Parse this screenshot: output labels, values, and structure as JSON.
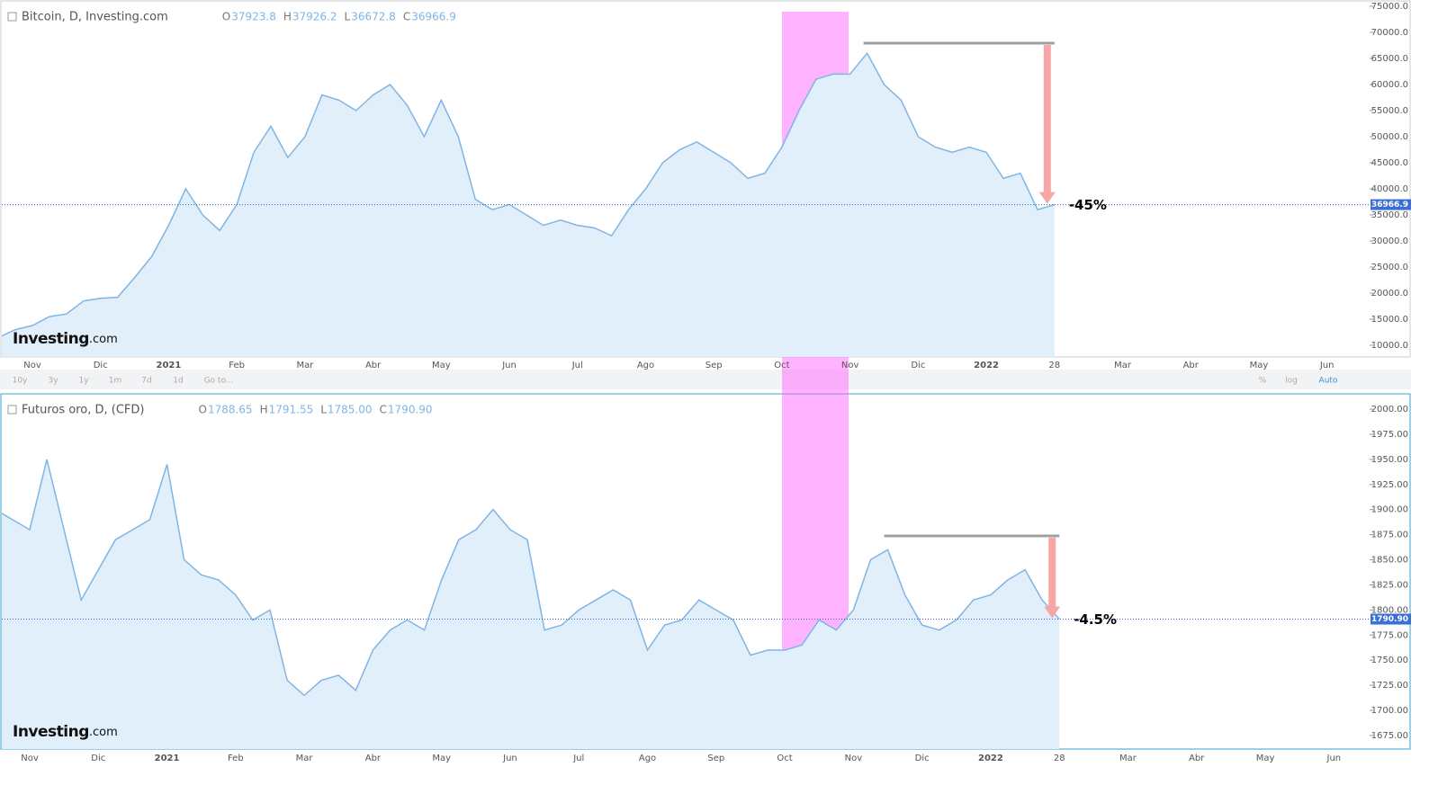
{
  "chart_data": [
    {
      "type": "area",
      "title": "Bitcoin, D, Investing.com",
      "ohlc": [
        {
          "name": "O",
          "value": 37923.8
        },
        {
          "name": "H",
          "value": 37926.2
        },
        {
          "name": "L",
          "value": 36672.8
        },
        {
          "name": "C",
          "value": 36966.9
        }
      ],
      "logo": [
        "Investing",
        ".com"
      ],
      "annotation": "-45%",
      "color": "#7fb5e6",
      "categories": [
        null,
        null,
        "Nov",
        null,
        null,
        null,
        "Dic",
        null,
        null,
        null,
        "2021",
        null,
        null,
        null,
        "Feb",
        null,
        null,
        null,
        "Mar",
        null,
        null,
        null,
        "Abr",
        null,
        null,
        null,
        "May",
        null,
        null,
        null,
        "Jun",
        null,
        null,
        null,
        "Jul",
        null,
        null,
        null,
        "Ago",
        null,
        null,
        null,
        "Sep",
        null,
        null,
        null,
        "Oct",
        null,
        null,
        null,
        "Nov",
        null,
        null,
        null,
        "Dic",
        null,
        null,
        null,
        "2022",
        null,
        null,
        null,
        "28",
        null,
        null,
        null,
        "Mar",
        null,
        null,
        null,
        "Abr",
        null,
        null,
        null,
        "May",
        null,
        null,
        null,
        "Jun",
        null
      ],
      "values": [
        11500,
        13000,
        13800,
        15500,
        16000,
        18500,
        19000,
        19200,
        23000,
        27000,
        33000,
        40000,
        35000,
        32000,
        37000,
        47000,
        52000,
        46000,
        50000,
        58000,
        57000,
        55000,
        58000,
        60000,
        56000,
        50000,
        57000,
        50000,
        38000,
        36000,
        37000,
        35000,
        33000,
        34000,
        33000,
        32500,
        31000,
        36000,
        40000,
        45000,
        47500,
        49000,
        47000,
        45000,
        42000,
        43000,
        48000,
        55000,
        61000,
        62000,
        62000,
        66000,
        60000,
        57000,
        50000,
        48000,
        47000,
        48000,
        47000,
        42000,
        43000,
        36000,
        36966.9,
        null,
        null,
        null,
        null,
        null,
        null,
        null,
        null,
        null,
        null,
        null,
        null,
        null,
        null,
        null,
        null,
        null
      ],
      "ylim": [
        7760,
        76030
      ],
      "yticks": [
        {
          "value": 10000,
          "label": "10000.0"
        },
        {
          "value": 15000,
          "label": "15000.0"
        },
        {
          "value": 20000,
          "label": "20000.0"
        },
        {
          "value": 25000,
          "label": "25000.0"
        },
        {
          "value": 30000,
          "label": "30000.0"
        },
        {
          "value": 35000,
          "label": "35000.0"
        },
        {
          "value": 40000,
          "label": "40000.0"
        },
        {
          "value": 45000,
          "label": "45000.0"
        },
        {
          "value": 50000,
          "label": "50000.0"
        },
        {
          "value": 55000,
          "label": "55000.0"
        },
        {
          "value": 60000,
          "label": "60000.0"
        },
        {
          "value": 65000,
          "label": "65000.0"
        },
        {
          "value": 70000,
          "label": "70000.0"
        },
        {
          "value": 75000,
          "label": "75000.0"
        }
      ],
      "toolbar": {
        "ranges": [
          "10y",
          "3y",
          "1y",
          "1m",
          "7d",
          "1d",
          "Go to..."
        ],
        "options": [
          "%",
          "log",
          "Auto"
        ]
      }
    },
    {
      "type": "area",
      "title": "Futuros oro, D, (CFD)",
      "ohlc": [
        {
          "name": "O",
          "value": 1788.65
        },
        {
          "name": "H",
          "value": 1791.55
        },
        {
          "name": "L",
          "value": 1785,
          "label": "1785.00"
        },
        {
          "name": "C",
          "value": 1790.9,
          "label": "1790.90"
        }
      ],
      "logo": [
        "Investing",
        ".com"
      ],
      "annotation": "-4.5%",
      "color": "#7fb5e6",
      "last_value_label": "1790.90",
      "categories": [
        null,
        null,
        "Nov",
        null,
        null,
        null,
        "Dic",
        null,
        null,
        null,
        "2021",
        null,
        null,
        null,
        "Feb",
        null,
        null,
        null,
        "Mar",
        null,
        null,
        null,
        "Abr",
        null,
        null,
        null,
        "May",
        null,
        null,
        null,
        "Jun",
        null,
        null,
        null,
        "Jul",
        null,
        null,
        null,
        "Ago",
        null,
        null,
        null,
        "Sep",
        null,
        null,
        null,
        "Oct",
        null,
        null,
        null,
        "Nov",
        null,
        null,
        null,
        "Dic",
        null,
        null,
        null,
        "2022",
        null,
        null,
        null,
        "28",
        null,
        null,
        null,
        "Mar",
        null,
        null,
        null,
        "Abr",
        null,
        null,
        null,
        "May",
        null,
        null,
        null,
        "Jun",
        null
      ],
      "values": [
        1900,
        1890,
        1880,
        1950,
        1880,
        1810,
        1840,
        1870,
        1880,
        1890,
        1945,
        1850,
        1835,
        1830,
        1815,
        1790,
        1800,
        1730,
        1715,
        1730,
        1735,
        1720,
        1760,
        1780,
        1790,
        1780,
        1830,
        1870,
        1880,
        1900,
        1880,
        1870,
        1780,
        1785,
        1800,
        1810,
        1820,
        1810,
        1760,
        1785,
        1790,
        1810,
        1800,
        1790,
        1755,
        1760,
        1760,
        1765,
        1790,
        1780,
        1800,
        1850,
        1860,
        1815,
        1785,
        1780,
        1790,
        1810,
        1815,
        1830,
        1840,
        1810,
        1790.9,
        null,
        null,
        null,
        null,
        null,
        null,
        null,
        null,
        null,
        null,
        null,
        null,
        null,
        null,
        null,
        null,
        null
      ],
      "ylim": [
        1661.5,
        2014.4
      ],
      "yticks": [
        {
          "value": 1675,
          "label": "1675.00"
        },
        {
          "value": 1700,
          "label": "1700.00"
        },
        {
          "value": 1725,
          "label": "1725.00"
        },
        {
          "value": 1750,
          "label": "1750.00"
        },
        {
          "value": 1775,
          "label": "1775.00"
        },
        {
          "value": 1800,
          "label": "1800.00"
        },
        {
          "value": 1825,
          "label": "1825.00"
        },
        {
          "value": 1850,
          "label": "1850.00"
        },
        {
          "value": 1875,
          "label": "1875.00"
        },
        {
          "value": 1900,
          "label": "1900.00"
        },
        {
          "value": 1925,
          "label": "1925.00"
        },
        {
          "value": 1950,
          "label": "1950.00"
        },
        {
          "value": 1975,
          "label": "1975.00"
        },
        {
          "value": 2000,
          "label": "2000.00"
        }
      ]
    }
  ]
}
